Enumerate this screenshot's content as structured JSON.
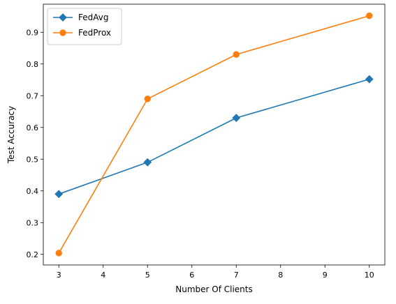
{
  "chart_data": {
    "type": "line",
    "title": "",
    "xlabel": "Number Of Clients",
    "ylabel": "Test Accuracy",
    "x": [
      3,
      5,
      7,
      10
    ],
    "xticks": [
      3,
      4,
      5,
      6,
      7,
      8,
      9,
      10
    ],
    "yticks": [
      0.2,
      0.3,
      0.4,
      0.5,
      0.6,
      0.7,
      0.8,
      0.9
    ],
    "xlim": [
      2.65,
      10.35
    ],
    "ylim": [
      0.1665,
      0.9885
    ],
    "grid": false,
    "legend_position": "upper left",
    "series": [
      {
        "name": "FedAvg",
        "values": [
          0.39,
          0.49,
          0.63,
          0.752
        ],
        "color": "#1f77b4",
        "marker": "diamond"
      },
      {
        "name": "FedProx",
        "values": [
          0.204,
          0.69,
          0.83,
          0.952
        ],
        "color": "#ff7f0e",
        "marker": "circle"
      }
    ]
  }
}
